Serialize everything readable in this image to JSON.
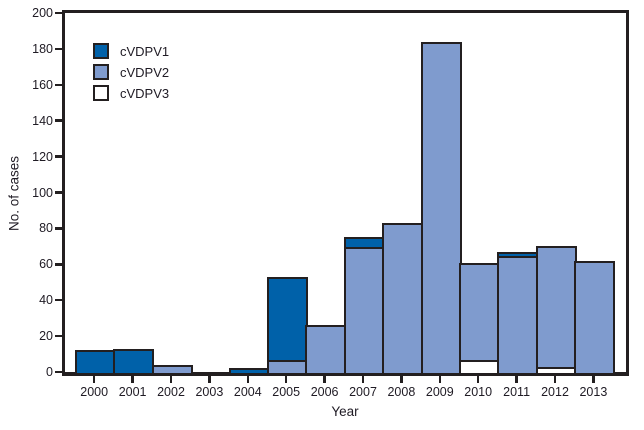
{
  "axes": {
    "ylabel": "No. of cases",
    "xlabel": "Year",
    "ytick_labels": [
      "0",
      "20",
      "40",
      "60",
      "80",
      "100",
      "120",
      "140",
      "160",
      "180",
      "200"
    ],
    "xtick_labels": [
      "2000",
      "2001",
      "2002",
      "2003",
      "2004",
      "2005",
      "2006",
      "2007",
      "2008",
      "2009",
      "2010",
      "2011",
      "2012",
      "2013"
    ]
  },
  "legend": {
    "items": [
      {
        "label": "cVDPV1",
        "color": "#0061a9"
      },
      {
        "label": "cVDPV2",
        "color": "#7f9bce"
      },
      {
        "label": "cVDPV3",
        "color": "#ffffff"
      }
    ]
  },
  "chart_data": {
    "type": "bar",
    "stacked": true,
    "title": "",
    "xlabel": "Year",
    "ylabel": "No. of cases",
    "ylim": [
      0,
      200
    ],
    "ytick_interval": 20,
    "grid": false,
    "legend_position": "upper-left",
    "categories": [
      "2000",
      "2001",
      "2002",
      "2003",
      "2004",
      "2005",
      "2006",
      "2007",
      "2008",
      "2009",
      "2010",
      "2011",
      "2012",
      "2013"
    ],
    "series": [
      {
        "name": "cVDPV1",
        "color": "#0061a9",
        "values": [
          12,
          13,
          0,
          0,
          2,
          46,
          0,
          5,
          0,
          0,
          0,
          2,
          0,
          0
        ]
      },
      {
        "name": "cVDPV2",
        "color": "#7f9bce",
        "values": [
          0,
          0,
          4,
          0,
          0,
          7,
          26,
          70,
          83,
          184,
          54,
          65,
          67,
          62
        ]
      },
      {
        "name": "cVDPV3",
        "color": "#ffffff",
        "values": [
          0,
          0,
          0,
          0,
          0,
          0,
          0,
          0,
          0,
          0,
          7,
          0,
          3,
          0
        ]
      }
    ],
    "stack_order_bottom_to_top": [
      "cVDPV3",
      "cVDPV2",
      "cVDPV1"
    ],
    "totals_by_year": [
      12,
      13,
      4,
      0,
      2,
      53,
      26,
      75,
      83,
      184,
      61,
      67,
      70,
      62
    ]
  },
  "colors": {
    "axis": "#231f20",
    "text": "#1f1b24",
    "background": "#ffffff"
  }
}
